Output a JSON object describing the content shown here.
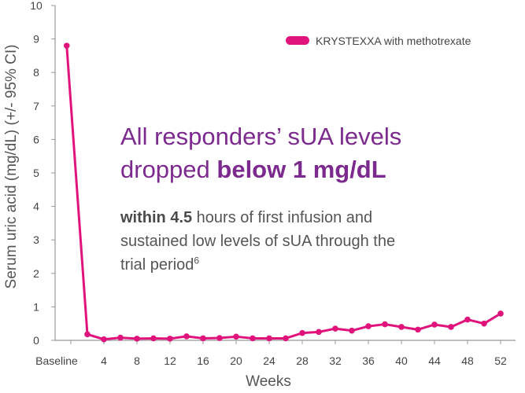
{
  "chart_data": {
    "type": "line",
    "xlabel": "Weeks",
    "ylabel": "Serum uric acid (mg/dL) (+/- 95% CI)",
    "ylim": [
      0,
      10
    ],
    "y_ticks": [
      0,
      1,
      2,
      3,
      4,
      5,
      6,
      7,
      8,
      9,
      10
    ],
    "x_tick_labels": [
      "Baseline",
      "4",
      "8",
      "12",
      "16",
      "20",
      "24",
      "28",
      "32",
      "36",
      "40",
      "44",
      "48",
      "52"
    ],
    "x_tick_values": [
      0,
      4,
      8,
      12,
      16,
      20,
      24,
      28,
      32,
      36,
      40,
      44,
      48,
      52
    ],
    "x_range": [
      -1,
      53
    ],
    "legend_position": "top-right",
    "series": [
      {
        "name": "KRYSTEXXA with methotrexate",
        "color": "#e0137d",
        "points": [
          {
            "x": -0.5,
            "y": 8.8
          },
          {
            "x": 2,
            "y": 0.18
          },
          {
            "x": 4,
            "y": 0.03
          },
          {
            "x": 6,
            "y": 0.08
          },
          {
            "x": 8,
            "y": 0.05
          },
          {
            "x": 10,
            "y": 0.06
          },
          {
            "x": 12,
            "y": 0.05
          },
          {
            "x": 14,
            "y": 0.12
          },
          {
            "x": 16,
            "y": 0.06
          },
          {
            "x": 18,
            "y": 0.07
          },
          {
            "x": 20,
            "y": 0.11
          },
          {
            "x": 22,
            "y": 0.06
          },
          {
            "x": 24,
            "y": 0.06
          },
          {
            "x": 26,
            "y": 0.06
          },
          {
            "x": 28,
            "y": 0.22
          },
          {
            "x": 30,
            "y": 0.25
          },
          {
            "x": 32,
            "y": 0.35
          },
          {
            "x": 34,
            "y": 0.29
          },
          {
            "x": 36,
            "y": 0.42
          },
          {
            "x": 38,
            "y": 0.48
          },
          {
            "x": 40,
            "y": 0.4
          },
          {
            "x": 42,
            "y": 0.32
          },
          {
            "x": 44,
            "y": 0.47
          },
          {
            "x": 46,
            "y": 0.4
          },
          {
            "x": 48,
            "y": 0.62
          },
          {
            "x": 50,
            "y": 0.5
          },
          {
            "x": 52,
            "y": 0.8
          }
        ]
      }
    ]
  },
  "headline": {
    "line1": "All responders’ sUA levels",
    "line2_prefix": "dropped ",
    "line2_bold": "below 1 mg/dL"
  },
  "body": {
    "bold": "within 4.5",
    "line1_rest": " hours of first infusion and",
    "line2": "sustained low levels of sUA through the",
    "line3": "trial period",
    "superscript": "6"
  },
  "colors": {
    "axis": "#999999",
    "series": "#e0137d",
    "headline": "#7d2a8f",
    "text": "#555555"
  }
}
